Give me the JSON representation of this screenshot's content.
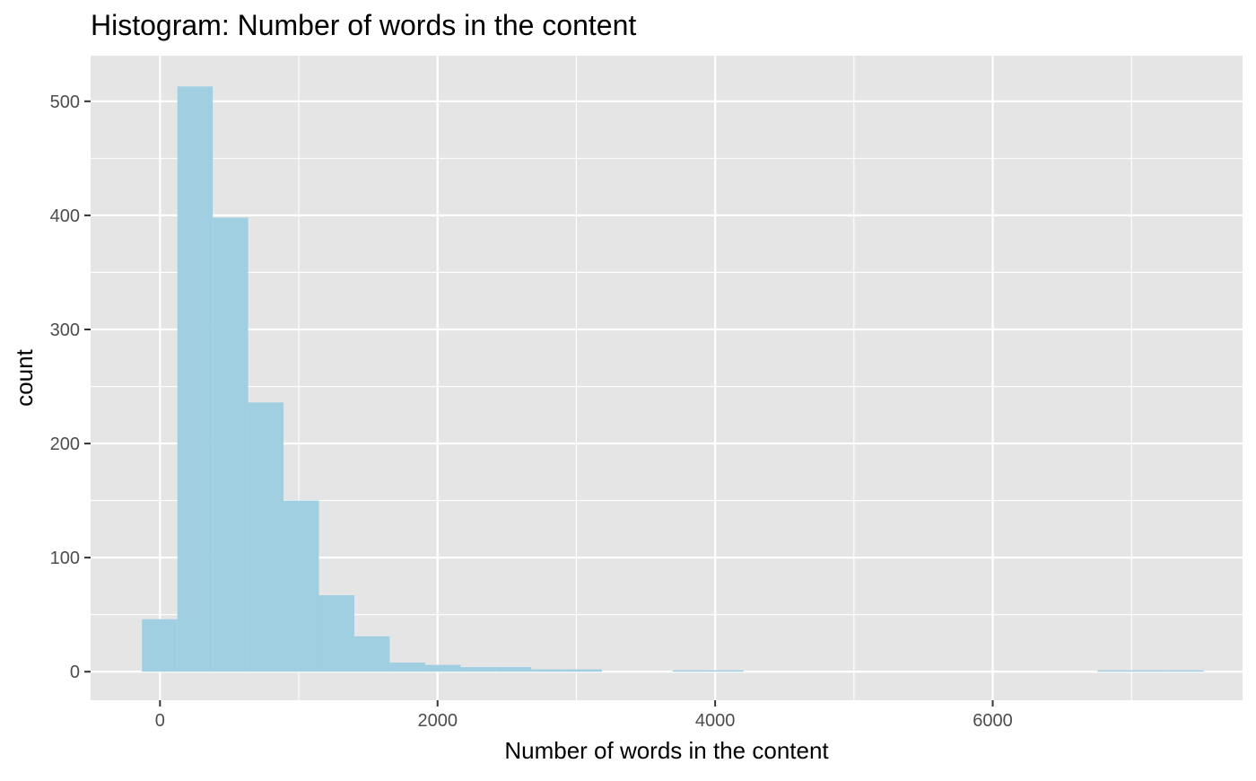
{
  "chart_data": {
    "type": "bar",
    "title": "Histogram: Number of words in the content",
    "xlabel": "Number of words in the content",
    "ylabel": "count",
    "xlim": [
      -500,
      7800
    ],
    "ylim": [
      -25,
      540
    ],
    "x_ticks": [
      0,
      2000,
      4000,
      6000
    ],
    "x_tick_labels": [
      "0",
      "2000",
      "4000",
      "6000"
    ],
    "y_ticks": [
      0,
      100,
      200,
      300,
      400,
      500
    ],
    "y_tick_labels": [
      "0",
      "100",
      "200",
      "300",
      "400",
      "500"
    ],
    "bin_width": 255,
    "bins": [
      {
        "x_start": -130,
        "x_end": 125,
        "count": 46
      },
      {
        "x_start": 125,
        "x_end": 380,
        "count": 513
      },
      {
        "x_start": 380,
        "x_end": 635,
        "count": 398
      },
      {
        "x_start": 635,
        "x_end": 890,
        "count": 236
      },
      {
        "x_start": 890,
        "x_end": 1145,
        "count": 150
      },
      {
        "x_start": 1145,
        "x_end": 1400,
        "count": 67
      },
      {
        "x_start": 1400,
        "x_end": 1655,
        "count": 31
      },
      {
        "x_start": 1655,
        "x_end": 1910,
        "count": 8
      },
      {
        "x_start": 1910,
        "x_end": 2165,
        "count": 6
      },
      {
        "x_start": 2165,
        "x_end": 2420,
        "count": 4
      },
      {
        "x_start": 2420,
        "x_end": 2675,
        "count": 4
      },
      {
        "x_start": 2675,
        "x_end": 2930,
        "count": 2
      },
      {
        "x_start": 2930,
        "x_end": 3185,
        "count": 2
      },
      {
        "x_start": 3695,
        "x_end": 3950,
        "count": 1
      },
      {
        "x_start": 3950,
        "x_end": 4205,
        "count": 1
      },
      {
        "x_start": 6755,
        "x_end": 7010,
        "count": 1
      },
      {
        "x_start": 7010,
        "x_end": 7265,
        "count": 1
      },
      {
        "x_start": 7265,
        "x_end": 7520,
        "count": 1
      }
    ],
    "grid": true,
    "colors": {
      "bar_fill": "#9fcfe1",
      "panel_background": "#e5e5e5",
      "grid_line": "#ffffff",
      "tick_label": "#4d4d4d",
      "text": "#000000"
    }
  }
}
